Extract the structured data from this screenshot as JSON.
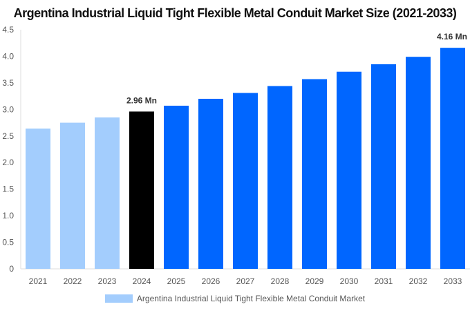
{
  "chart_data": {
    "type": "bar",
    "title": "Argentina Industrial Liquid Tight Flexible Metal Conduit Market Size (2021-2033)",
    "categories": [
      "2021",
      "2022",
      "2023",
      "2024",
      "2025",
      "2026",
      "2027",
      "2028",
      "2029",
      "2030",
      "2031",
      "2032",
      "2033"
    ],
    "series": [
      {
        "name": "Argentina Industrial Liquid Tight Flexible Metal Conduit Market",
        "values": [
          2.64,
          2.75,
          2.85,
          2.96,
          3.07,
          3.2,
          3.31,
          3.44,
          3.57,
          3.71,
          3.85,
          3.99,
          4.16
        ]
      }
    ],
    "bar_colors": {
      "historical": "#a3cdfd",
      "base_year": "#000000",
      "forecast": "#0066ff"
    },
    "color_groups": [
      "historical",
      "historical",
      "historical",
      "base_year",
      "forecast",
      "forecast",
      "forecast",
      "forecast",
      "forecast",
      "forecast",
      "forecast",
      "forecast",
      "forecast"
    ],
    "data_labels": {
      "2024": "2.96 Mn",
      "2033": "4.16 Mn"
    },
    "yticks": [
      "0",
      "0.5",
      "1.0",
      "1.5",
      "2.0",
      "2.5",
      "3.0",
      "3.5",
      "4.0",
      "4.5"
    ],
    "ylim": [
      0,
      4.5
    ],
    "xlabel": "",
    "ylabel": "",
    "grid": false,
    "legend_position": "bottom"
  }
}
